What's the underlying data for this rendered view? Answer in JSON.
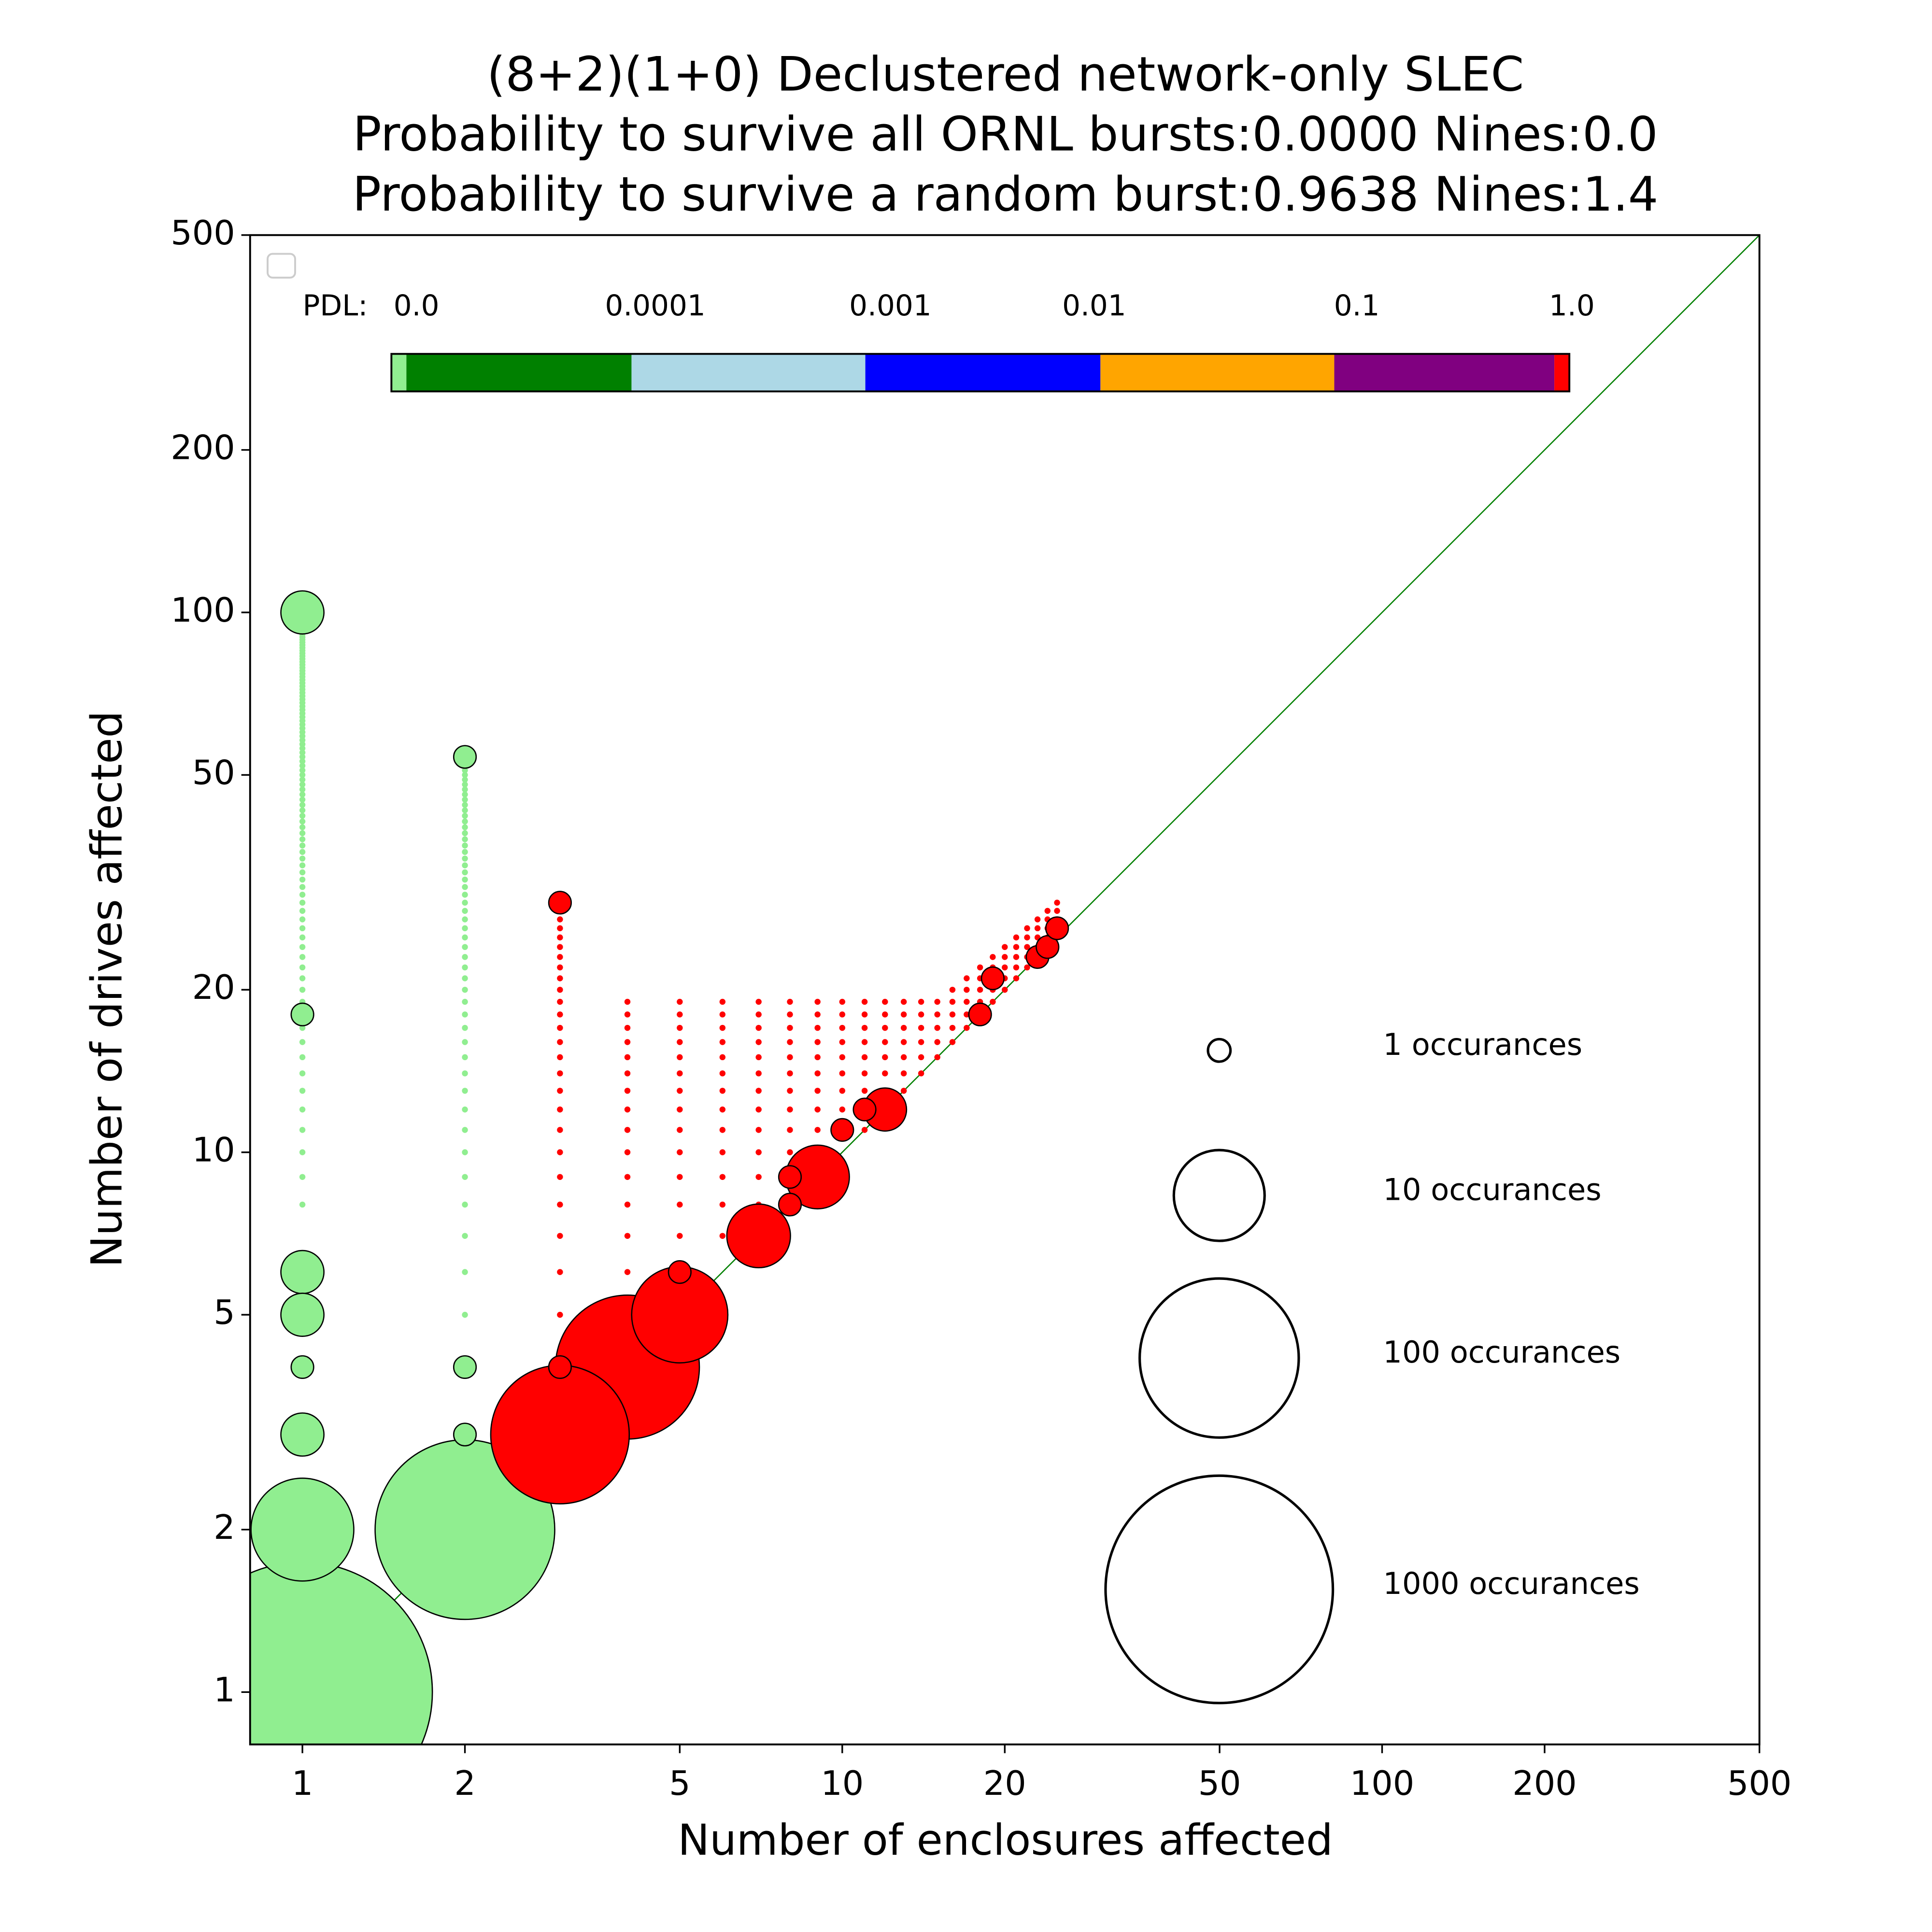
{
  "chart_data": {
    "type": "scatter",
    "title": "(8+2)(1+0) Declustered network-only SLEC",
    "subtitle": [
      "Probability to survive all ORNL bursts:0.0000 Nines:0.0",
      "Probability to survive a random burst:0.9638 Nines:1.4"
    ],
    "x_label": "Number of enclosures affected",
    "y_label": "Number of drives affected",
    "log_x": true,
    "log_y": true,
    "xlim": [
      0.8,
      500
    ],
    "ylim": [
      0.8,
      500
    ],
    "xticks": [
      1,
      2,
      5,
      10,
      20,
      50,
      100,
      200,
      500
    ],
    "yticks": [
      1,
      2,
      5,
      10,
      20,
      50,
      100,
      200,
      500
    ],
    "diagonal": true,
    "diagonal_color": "#008000",
    "edge_color": "#000000",
    "dot_columns": [
      {
        "color": "#90ee90",
        "x": 1,
        "y": [
          8,
          9,
          10,
          11,
          12,
          13,
          14,
          15,
          16,
          17,
          18,
          19,
          20,
          21,
          22,
          23,
          24,
          25,
          26,
          27,
          28,
          29,
          30,
          31,
          32,
          33,
          34,
          35,
          36,
          37,
          38,
          39,
          40,
          41,
          42,
          43,
          44,
          45,
          46,
          47,
          48,
          49,
          50,
          51,
          52,
          53,
          54,
          55,
          56,
          57,
          58,
          59,
          60,
          61,
          62,
          63,
          64,
          65,
          66,
          67,
          68,
          69,
          70,
          71,
          72,
          73,
          74,
          75,
          76,
          77,
          78,
          79,
          80,
          81,
          82,
          83,
          84,
          85,
          86,
          87,
          88,
          89,
          90,
          91,
          92,
          93,
          94,
          95,
          96,
          97,
          98,
          99
        ]
      },
      {
        "color": "#90ee90",
        "x": 2,
        "y": [
          5,
          6,
          7,
          8,
          9,
          10,
          11,
          12,
          13,
          14,
          15,
          16,
          17,
          18,
          19,
          20,
          21,
          22,
          23,
          24,
          25,
          26,
          27,
          28,
          29,
          30,
          31,
          32,
          33,
          34,
          35,
          36,
          37,
          38,
          39,
          40,
          41,
          42,
          43,
          44,
          45,
          46,
          47,
          48,
          49,
          50,
          51,
          52,
          53
        ]
      },
      {
        "color": "#ff0000",
        "x": 3,
        "y": [
          5,
          6,
          7,
          8,
          9,
          10,
          11,
          12,
          13,
          14,
          15,
          16,
          17,
          18,
          19,
          20,
          21,
          22,
          23,
          24,
          25,
          26,
          27,
          28
        ]
      },
      {
        "color": "#ff0000",
        "x": 4,
        "y": [
          5,
          6,
          7,
          8,
          9,
          10,
          11,
          12,
          13,
          14,
          15,
          16,
          17,
          18,
          19
        ]
      },
      {
        "color": "#ff0000",
        "x": 5,
        "y": [
          6,
          7,
          8,
          9,
          10,
          11,
          12,
          13,
          14,
          15,
          16,
          17,
          18,
          19
        ]
      },
      {
        "color": "#ff0000",
        "x": 6,
        "y": [
          7,
          8,
          9,
          10,
          11,
          12,
          13,
          14,
          15,
          16,
          17,
          18,
          19
        ]
      },
      {
        "color": "#ff0000",
        "x": 7,
        "y": [
          8,
          9,
          10,
          11,
          12,
          13,
          14,
          15,
          16,
          17,
          18,
          19
        ]
      },
      {
        "color": "#ff0000",
        "x": 8,
        "y": [
          8,
          9,
          10,
          11,
          12,
          13,
          14,
          15,
          16,
          17,
          18,
          19
        ]
      },
      {
        "color": "#ff0000",
        "x": 9,
        "y": [
          10,
          11,
          12,
          13,
          14,
          15,
          16,
          17,
          18,
          19
        ]
      },
      {
        "color": "#ff0000",
        "x": 10,
        "y": [
          11,
          12,
          13,
          14,
          15,
          16,
          17,
          18,
          19
        ]
      },
      {
        "color": "#ff0000",
        "x": 11,
        "y": [
          11,
          12,
          13,
          14,
          15,
          16,
          17,
          18,
          19
        ]
      },
      {
        "color": "#ff0000",
        "x": 12,
        "y": [
          12,
          13,
          14,
          15,
          16,
          17,
          18,
          19
        ]
      },
      {
        "color": "#ff0000",
        "x": 13,
        "y": [
          13,
          14,
          15,
          16,
          17,
          18,
          19
        ]
      },
      {
        "color": "#ff0000",
        "x": 14,
        "y": [
          14,
          15,
          16,
          17,
          18,
          19
        ]
      },
      {
        "color": "#ff0000",
        "x": 15,
        "y": [
          15,
          16,
          17,
          18,
          19
        ]
      },
      {
        "color": "#ff0000",
        "x": 16,
        "y": [
          16,
          17,
          18,
          19,
          20
        ]
      },
      {
        "color": "#ff0000",
        "x": 17,
        "y": [
          17,
          18,
          19,
          20,
          21
        ]
      },
      {
        "color": "#ff0000",
        "x": 18,
        "y": [
          18,
          19,
          20,
          21,
          22
        ]
      },
      {
        "color": "#ff0000",
        "x": 19,
        "y": [
          19,
          20,
          21,
          22,
          23
        ]
      },
      {
        "color": "#ff0000",
        "x": 20,
        "y": [
          20,
          21,
          22,
          23,
          24
        ]
      },
      {
        "color": "#ff0000",
        "x": 21,
        "y": [
          21,
          22,
          23,
          24,
          25
        ]
      },
      {
        "color": "#ff0000",
        "x": 22,
        "y": [
          22,
          23,
          24,
          25,
          26
        ]
      },
      {
        "color": "#ff0000",
        "x": 23,
        "y": [
          23,
          24,
          25,
          26,
          27
        ]
      },
      {
        "color": "#ff0000",
        "x": 24,
        "y": [
          24,
          25,
          26,
          27,
          28
        ]
      },
      {
        "color": "#ff0000",
        "x": 25,
        "y": [
          25,
          26,
          27,
          28,
          29
        ]
      }
    ],
    "point_series": [
      {
        "color": "#90ee90",
        "points": [
          [
            1,
            1,
            3000
          ],
          [
            2,
            2,
            200
          ],
          [
            1,
            2,
            15
          ],
          [
            1,
            100,
            2
          ],
          [
            1,
            6,
            2
          ],
          [
            1,
            5,
            2
          ],
          [
            1,
            3,
            2
          ],
          [
            1,
            4,
            1
          ],
          [
            1,
            18,
            1
          ],
          [
            2,
            54,
            1
          ],
          [
            2,
            4,
            1
          ],
          [
            2,
            3,
            1
          ]
        ]
      },
      {
        "color": "#ff0000",
        "points": [
          [
            4,
            4,
            60
          ],
          [
            3,
            3,
            50
          ],
          [
            5,
            5,
            12
          ],
          [
            7,
            7,
            4
          ],
          [
            9,
            9,
            4
          ],
          [
            12,
            12,
            2
          ],
          [
            3,
            4,
            1
          ],
          [
            5,
            6,
            1
          ],
          [
            3,
            29,
            1
          ],
          [
            8,
            8,
            1
          ],
          [
            8,
            9,
            1
          ],
          [
            10,
            11,
            1
          ],
          [
            11,
            12,
            1
          ],
          [
            18,
            18,
            1
          ],
          [
            19,
            21,
            1
          ],
          [
            23,
            23,
            1
          ],
          [
            24,
            24,
            1
          ],
          [
            25,
            26,
            1
          ]
        ]
      }
    ],
    "size_legend": [
      {
        "value": 1,
        "label": "1 occurances"
      },
      {
        "value": 10,
        "label": "10 occurances"
      },
      {
        "value": 100,
        "label": "100 occurances"
      },
      {
        "value": 1000,
        "label": "1000 occurances"
      }
    ],
    "pdl_colorbar": {
      "label": "PDL:",
      "ticks": [
        {
          "value": 0,
          "label": "0.0"
        },
        0.0001,
        0.001,
        0.01,
        0.1,
        {
          "value": 1,
          "label": "1.0"
        }
      ],
      "colors": [
        "#90ee90",
        "#008000",
        "#add8e6",
        "#0000ff",
        "#ffa500",
        "#800080",
        "#ff0000"
      ]
    }
  }
}
